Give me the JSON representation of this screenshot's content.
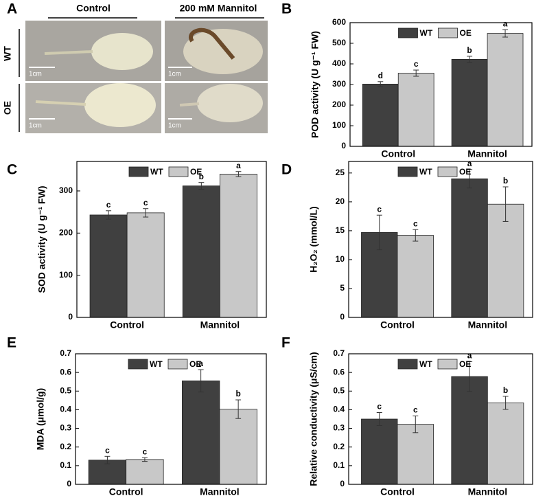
{
  "photo_panel": {
    "panel": "A",
    "columns": [
      "Control",
      "200 mM Mannitol"
    ],
    "rows": [
      "WT",
      "OE"
    ],
    "scale_labels": [
      "1cm",
      "1cm",
      "1cm",
      "1cm"
    ]
  },
  "chart_data": [
    {
      "type": "bar",
      "panel": "B",
      "ylabel": "POD activity (U g⁻¹ FW)",
      "categories": [
        "Control",
        "Mannitol"
      ],
      "series": [
        {
          "name": "WT",
          "color": "#404040",
          "values": [
            302,
            422
          ],
          "errors": [
            12,
            15
          ],
          "letters": [
            "d",
            "b"
          ]
        },
        {
          "name": "OE",
          "color": "#c8c8c8",
          "values": [
            355,
            548
          ],
          "errors": [
            15,
            18
          ],
          "letters": [
            "c",
            "a"
          ]
        }
      ],
      "ylim": [
        0,
        600
      ],
      "yticks": [
        0,
        100,
        200,
        300,
        400,
        500,
        600
      ],
      "legend": "top"
    },
    {
      "type": "bar",
      "panel": "C",
      "ylabel": "SOD activity (U g⁻¹ FW)",
      "categories": [
        "Control",
        "Mannitol"
      ],
      "series": [
        {
          "name": "WT",
          "color": "#404040",
          "values": [
            243,
            312
          ],
          "errors": [
            10,
            8
          ],
          "letters": [
            "c",
            "b"
          ]
        },
        {
          "name": "OE",
          "color": "#c8c8c8",
          "values": [
            248,
            340
          ],
          "errors": [
            10,
            6
          ],
          "letters": [
            "c",
            "a"
          ]
        }
      ],
      "ylim": [
        0,
        370
      ],
      "yticks": [
        0,
        100,
        200,
        300
      ],
      "legend": "top"
    },
    {
      "type": "bar",
      "panel": "D",
      "ylabel": "H₂O₂ (mmol/L)",
      "categories": [
        "Control",
        "Mannitol"
      ],
      "series": [
        {
          "name": "WT",
          "color": "#404040",
          "values": [
            14.7,
            24
          ],
          "errors": [
            3,
            1.6
          ],
          "letters": [
            "c",
            "a"
          ]
        },
        {
          "name": "OE",
          "color": "#c8c8c8",
          "values": [
            14.2,
            19.6
          ],
          "errors": [
            1,
            3
          ],
          "letters": [
            "c",
            "b"
          ]
        }
      ],
      "ylim": [
        0,
        27
      ],
      "yticks": [
        0,
        5,
        10,
        15,
        20,
        25
      ],
      "legend": "top"
    },
    {
      "type": "bar",
      "panel": "E",
      "ylabel": "MDA (μmol/g)",
      "categories": [
        "Control",
        "Mannitol"
      ],
      "series": [
        {
          "name": "WT",
          "color": "#404040",
          "values": [
            0.13,
            0.555
          ],
          "errors": [
            0.02,
            0.06
          ],
          "letters": [
            "c",
            "a"
          ]
        },
        {
          "name": "OE",
          "color": "#c8c8c8",
          "values": [
            0.133,
            0.403
          ],
          "errors": [
            0.01,
            0.05
          ],
          "letters": [
            "c",
            "b"
          ]
        }
      ],
      "ylim": [
        0,
        0.7
      ],
      "yticks": [
        0,
        0.1,
        0.2,
        0.3,
        0.4,
        0.5,
        0.6,
        0.7
      ],
      "legend": "top"
    },
    {
      "type": "bar",
      "panel": "F",
      "ylabel": "Relative conductivity (μS/cm)",
      "categories": [
        "Control",
        "Mannitol"
      ],
      "series": [
        {
          "name": "WT",
          "color": "#404040",
          "values": [
            0.35,
            0.578
          ],
          "errors": [
            0.035,
            0.08
          ],
          "letters": [
            "c",
            "a"
          ]
        },
        {
          "name": "OE",
          "color": "#c8c8c8",
          "values": [
            0.322,
            0.437
          ],
          "errors": [
            0.045,
            0.035
          ],
          "letters": [
            "c",
            "b"
          ]
        }
      ],
      "ylim": [
        0,
        0.7
      ],
      "yticks": [
        0,
        0.1,
        0.2,
        0.3,
        0.4,
        0.5,
        0.6,
        0.7
      ],
      "legend": "top"
    }
  ]
}
